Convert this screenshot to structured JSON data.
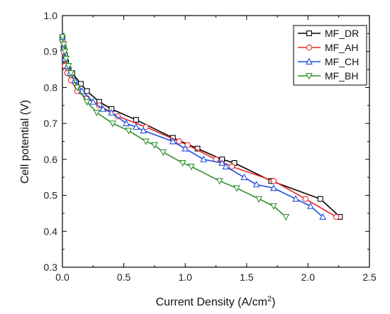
{
  "chart_data": {
    "type": "line",
    "xlabel": "Current Density (A/cm",
    "xlabel_sup": "2",
    "xlabel_end": ")",
    "ylabel": "Cell potential (V)",
    "xlim": [
      0.0,
      2.5
    ],
    "ylim": [
      0.3,
      1.0
    ],
    "xticks": [
      "0.0",
      "0.5",
      "1.0",
      "1.5",
      "2.0",
      "2.5"
    ],
    "yticks": [
      "0.3",
      "0.4",
      "0.5",
      "0.6",
      "0.7",
      "0.8",
      "0.9",
      "1.0"
    ],
    "grid": false,
    "legend": "top-right",
    "series": [
      {
        "name": "MF_DR",
        "color": "#000000",
        "marker": "square",
        "x": [
          0.0,
          0.01,
          0.02,
          0.03,
          0.05,
          0.08,
          0.15,
          0.2,
          0.3,
          0.4,
          0.6,
          0.9,
          1.1,
          1.3,
          1.4,
          1.7,
          2.1,
          2.26
        ],
        "y": [
          0.94,
          0.91,
          0.89,
          0.87,
          0.85,
          0.84,
          0.81,
          0.79,
          0.76,
          0.74,
          0.71,
          0.66,
          0.63,
          0.6,
          0.59,
          0.54,
          0.49,
          0.44
        ]
      },
      {
        "name": "MF_AH",
        "color": "#e8282a",
        "marker": "circle",
        "x": [
          0.0,
          0.01,
          0.02,
          0.04,
          0.07,
          0.12,
          0.2,
          0.3,
          0.45,
          0.68,
          0.95,
          1.02,
          1.25,
          1.38,
          1.72,
          1.98,
          2.23
        ],
        "y": [
          0.93,
          0.9,
          0.86,
          0.84,
          0.82,
          0.79,
          0.77,
          0.75,
          0.72,
          0.69,
          0.65,
          0.64,
          0.6,
          0.58,
          0.54,
          0.49,
          0.44
        ]
      },
      {
        "name": "MF_CH",
        "color": "#1f4fe0",
        "marker": "triangle-up",
        "x": [
          0.0,
          0.01,
          0.02,
          0.04,
          0.06,
          0.1,
          0.16,
          0.25,
          0.33,
          0.4,
          0.52,
          0.6,
          0.66,
          0.9,
          1.0,
          1.15,
          1.3,
          1.33,
          1.48,
          1.58,
          1.72,
          1.9,
          2.02,
          2.12
        ],
        "y": [
          0.94,
          0.91,
          0.88,
          0.86,
          0.84,
          0.82,
          0.79,
          0.76,
          0.74,
          0.73,
          0.7,
          0.69,
          0.68,
          0.65,
          0.63,
          0.6,
          0.59,
          0.58,
          0.55,
          0.53,
          0.52,
          0.49,
          0.47,
          0.44
        ]
      },
      {
        "name": "MF_BH",
        "color": "#2f8f2f",
        "marker": "triangle-down",
        "x": [
          0.0,
          0.01,
          0.02,
          0.03,
          0.05,
          0.07,
          0.12,
          0.2,
          0.28,
          0.41,
          0.54,
          0.68,
          0.75,
          0.82,
          0.98,
          1.05,
          1.28,
          1.42,
          1.6,
          1.72,
          1.82
        ],
        "y": [
          0.94,
          0.92,
          0.9,
          0.88,
          0.86,
          0.84,
          0.8,
          0.76,
          0.73,
          0.7,
          0.68,
          0.65,
          0.64,
          0.62,
          0.59,
          0.58,
          0.54,
          0.52,
          0.49,
          0.47,
          0.44
        ]
      }
    ]
  }
}
